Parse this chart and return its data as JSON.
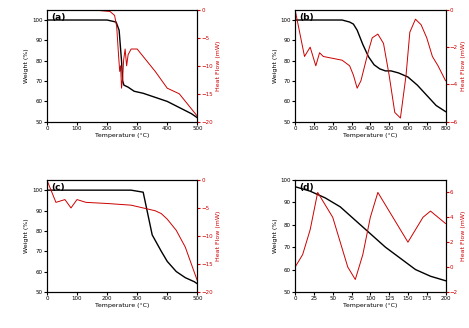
{
  "panel_labels": [
    "(a)",
    "(b)",
    "(c)",
    "(d)"
  ],
  "xlabel": "Temperature (°C)",
  "ylabel_left": "Weight (%)",
  "ylabel_right": "Heat Flow (mW)",
  "line_color_black": "#000000",
  "line_color_red": "#cc0000",
  "background_color": "#ffffff",
  "panels": {
    "a": {
      "xlim": [
        0,
        500
      ],
      "weight_x": [
        0,
        30,
        100,
        200,
        230,
        240,
        248,
        252,
        256,
        270,
        290,
        320,
        360,
        400,
        440,
        480,
        500
      ],
      "weight_y": [
        100,
        100,
        100,
        100,
        99,
        95,
        80,
        70,
        68,
        67,
        65,
        64,
        62,
        60,
        57,
        54,
        52
      ],
      "hf_x": [
        0,
        30,
        100,
        150,
        210,
        225,
        232,
        238,
        242,
        245,
        248,
        252,
        255,
        260,
        265,
        270,
        280,
        300,
        330,
        360,
        400,
        440,
        470,
        500
      ],
      "hf_y": [
        0,
        0,
        0,
        0,
        -0.3,
        -1,
        -3,
        -8,
        -11,
        -10,
        -14,
        -12,
        -9,
        -7,
        -10,
        -8,
        -7,
        -7,
        -9,
        -11,
        -14,
        -15,
        -17,
        -19
      ],
      "weight_ylim": [
        50,
        105
      ],
      "weight_yticks": [
        50,
        60,
        70,
        80,
        90,
        100
      ],
      "hf_ylim": [
        -20,
        0
      ],
      "hf_yticks": [
        0,
        -5,
        -10,
        -15,
        -20
      ]
    },
    "b": {
      "xlim": [
        0,
        800
      ],
      "weight_x": [
        0,
        50,
        100,
        150,
        200,
        250,
        290,
        310,
        330,
        360,
        390,
        420,
        450,
        480,
        510,
        550,
        600,
        650,
        700,
        750,
        800
      ],
      "weight_y": [
        100,
        100,
        100,
        100,
        100,
        100,
        99,
        98,
        95,
        88,
        82,
        78,
        76,
        75,
        75,
        74,
        72,
        68,
        63,
        58,
        55
      ],
      "hf_x": [
        0,
        50,
        80,
        110,
        130,
        150,
        200,
        250,
        290,
        310,
        330,
        350,
        370,
        390,
        410,
        440,
        470,
        500,
        530,
        560,
        590,
        610,
        640,
        670,
        700,
        730,
        760,
        800
      ],
      "hf_y": [
        0,
        -2.5,
        -2,
        -3,
        -2.3,
        -2.5,
        -2.6,
        -2.7,
        -3.0,
        -3.5,
        -4.2,
        -3.8,
        -3.0,
        -2.2,
        -1.5,
        -1.3,
        -1.8,
        -3.5,
        -5.5,
        -5.8,
        -3.5,
        -1.2,
        -0.5,
        -0.8,
        -1.5,
        -2.5,
        -3.0,
        -3.8
      ],
      "weight_ylim": [
        50,
        105
      ],
      "weight_yticks": [
        50,
        60,
        70,
        80,
        90,
        100
      ],
      "hf_ylim": [
        -6,
        0
      ],
      "hf_yticks": [
        0,
        -2,
        -4,
        -6
      ]
    },
    "c": {
      "xlim": [
        0,
        500
      ],
      "weight_x": [
        0,
        30,
        100,
        200,
        280,
        320,
        350,
        380,
        400,
        430,
        460,
        490,
        500
      ],
      "weight_y": [
        100,
        100,
        100,
        100,
        100,
        99,
        78,
        70,
        65,
        60,
        57,
        55,
        54
      ],
      "hf_x": [
        0,
        30,
        60,
        80,
        100,
        130,
        200,
        280,
        320,
        360,
        380,
        400,
        430,
        460,
        480,
        500
      ],
      "hf_y": [
        0,
        -4,
        -3.5,
        -5,
        -3.5,
        -4,
        -4.2,
        -4.5,
        -5,
        -5.5,
        -6,
        -7,
        -9,
        -12,
        -15,
        -18
      ],
      "weight_ylim": [
        50,
        105
      ],
      "weight_yticks": [
        50,
        60,
        70,
        80,
        90,
        100
      ],
      "hf_ylim": [
        -20,
        0
      ],
      "hf_yticks": [
        0,
        -5,
        -10,
        -15,
        -20
      ]
    },
    "d": {
      "xlim": [
        0,
        200
      ],
      "weight_x": [
        0,
        20,
        40,
        60,
        80,
        100,
        120,
        140,
        160,
        180,
        200
      ],
      "weight_y": [
        97,
        95,
        92,
        88,
        82,
        76,
        70,
        65,
        60,
        57,
        55
      ],
      "hf_x": [
        0,
        10,
        20,
        30,
        40,
        50,
        60,
        70,
        80,
        90,
        100,
        110,
        120,
        130,
        140,
        150,
        160,
        170,
        180,
        190,
        200
      ],
      "hf_y": [
        0,
        1,
        3,
        6,
        5,
        4,
        2,
        0,
        -1,
        1,
        4,
        6,
        5,
        4,
        3,
        2,
        3,
        4,
        4.5,
        4,
        3.5
      ],
      "weight_ylim": [
        50,
        100
      ],
      "weight_yticks": [
        50,
        60,
        70,
        80,
        90,
        100
      ],
      "hf_ylim": [
        -2,
        7
      ],
      "hf_yticks": [
        -2,
        0,
        2,
        4,
        6
      ]
    }
  }
}
